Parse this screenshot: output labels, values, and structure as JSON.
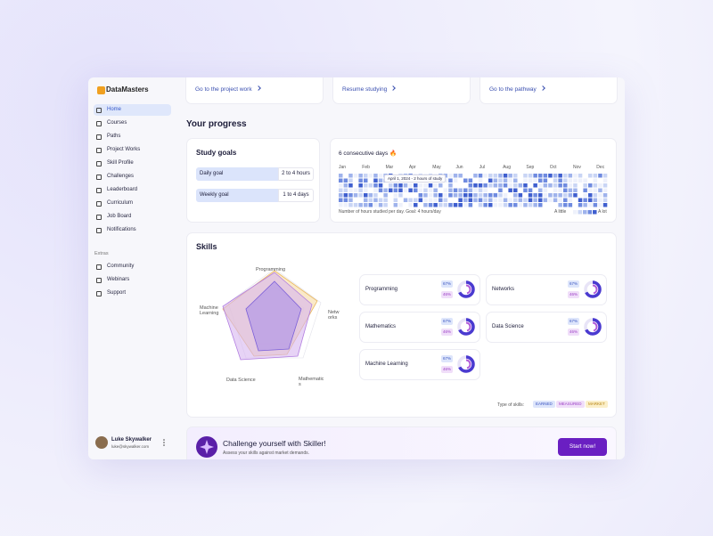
{
  "sidebar": {
    "logo": "DataMasters",
    "menu": [
      "Home",
      "Courses",
      "Paths",
      "Project Works",
      "Skill Profile",
      "Challenges",
      "Leaderboard",
      "Curriculum",
      "Job Board",
      "Notifications"
    ],
    "extras_title": "Extras",
    "extras": [
      "Community",
      "Webinars",
      "Support"
    ],
    "user": {
      "name": "Luke Skywalker",
      "email": "luke@skywalker.com"
    }
  },
  "quick_links": [
    "Go to the project work",
    "Resume studying",
    "Go to the pathway"
  ],
  "progress": {
    "title": "Your progress",
    "study_goals": {
      "title": "Study goals",
      "rows": [
        [
          "Daily goal",
          "2 to 4 hours"
        ],
        [
          "Weekly goal",
          "1 to 4 days"
        ]
      ]
    },
    "activity": {
      "title": "6 consecutive days 🔥",
      "months": [
        "Jan",
        "Feb",
        "Mar",
        "Apr",
        "May",
        "Jun",
        "Jul",
        "Aug",
        "Sep",
        "Oct",
        "Nov",
        "Dec"
      ],
      "tooltip": "April 1, 2024 - 2 hours of study",
      "caption": "Number of hours studied per day. Goal: 4 hours/day",
      "legend_low": "A little",
      "legend_high": "A lot"
    }
  },
  "skills": {
    "title": "Skills",
    "radar_labels": [
      "Programming",
      "Networks",
      "Mathematics",
      "Data Science",
      "Machine Learning"
    ],
    "cards": [
      {
        "name": "Programming",
        "earned": "67%",
        "measured": "46%"
      },
      {
        "name": "Networks",
        "earned": "67%",
        "measured": "46%"
      },
      {
        "name": "Mathematics",
        "earned": "67%",
        "measured": "46%"
      },
      {
        "name": "Data Science",
        "earned": "67%",
        "measured": "46%"
      },
      {
        "name": "Machine Learning",
        "earned": "67%",
        "measured": "46%"
      }
    ],
    "legend_title": "Type of skills:",
    "legend": [
      "EARNED",
      "MEASURED",
      "MARKET"
    ]
  },
  "banner": {
    "title": "Challenge yourself with Skiller!",
    "subtitle": "Assess your skills against market demands.",
    "button": "Start now!"
  }
}
